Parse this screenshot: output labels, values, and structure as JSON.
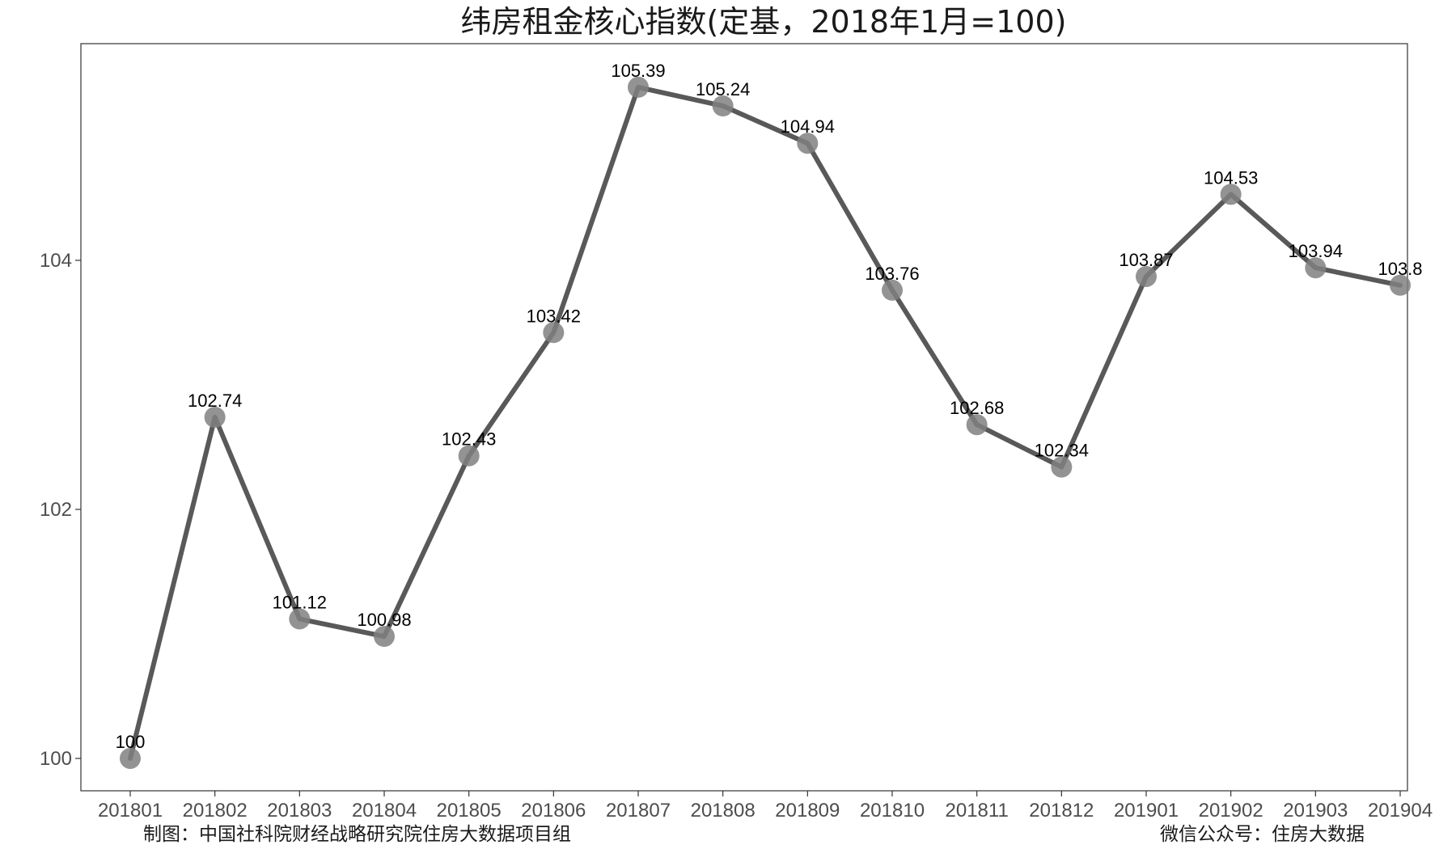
{
  "chart_data": {
    "type": "line",
    "title": "纬房租金核心指数(定基，2018年1月=100)",
    "xlabel": "",
    "ylabel": "",
    "categories": [
      "201801",
      "201802",
      "201803",
      "201804",
      "201805",
      "201806",
      "201807",
      "201808",
      "201809",
      "201810",
      "201811",
      "201812",
      "201901",
      "201902",
      "201903",
      "201904"
    ],
    "values": [
      100,
      102.74,
      101.12,
      100.98,
      102.43,
      103.42,
      105.39,
      105.24,
      104.94,
      103.76,
      102.68,
      102.34,
      103.87,
      104.53,
      103.94,
      103.8
    ],
    "data_labels": [
      "100",
      "102.74",
      "101.12",
      "100.98",
      "102.43",
      "103.42",
      "105.39",
      "105.24",
      "104.94",
      "103.76",
      "102.68",
      "102.34",
      "103.87",
      "104.53",
      "103.94",
      "103.8"
    ],
    "y_ticks": [
      100,
      102,
      104
    ],
    "y_tick_labels": [
      "100",
      "102",
      "104"
    ],
    "ylim": [
      99.74,
      105.74
    ],
    "grid": false,
    "line_color": "#595959",
    "marker_color": "#808080"
  },
  "footer": {
    "left": "制图：中国社科院财经战略研究院住房大数据项目组",
    "right": "微信公众号：住房大数据"
  }
}
